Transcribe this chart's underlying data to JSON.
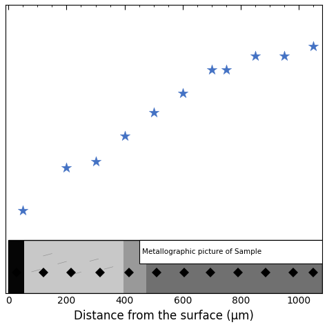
{
  "xlabel": "Distance from the surface (μm)",
  "x_data": [
    50,
    200,
    300,
    400,
    500,
    600,
    700,
    750,
    850,
    950,
    1050
  ],
  "y_data": [
    1,
    3.2,
    3.5,
    4.8,
    6.0,
    7.0,
    8.2,
    8.2,
    8.9,
    8.9,
    9.4
  ],
  "star_color": "#4472C4",
  "xlim": [
    -10,
    1080
  ],
  "ylim": [
    -3.2,
    11.5
  ],
  "xticks": [
    0,
    200,
    400,
    600,
    800,
    1000
  ],
  "marker_size": 120,
  "image_label": "Metallographic picture of Sample",
  "background_color": "#ffffff",
  "tick_fontsize": 10,
  "label_fontsize": 12
}
